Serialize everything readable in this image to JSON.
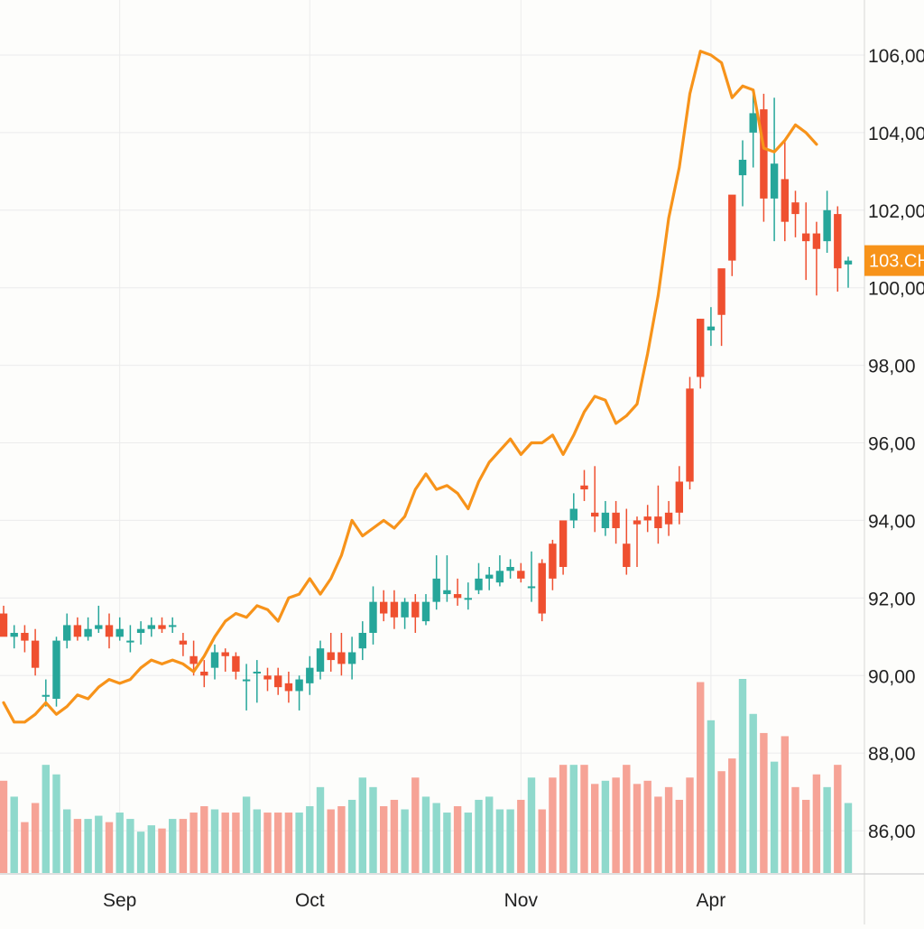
{
  "chart_data": {
    "type": "candlestick",
    "xlabel": "",
    "ylabel": "",
    "ylim": [
      84000,
      107000
    ],
    "y_ticks": [
      86000,
      88000,
      90000,
      92000,
      94000,
      96000,
      98000,
      100000,
      102000,
      104000,
      106000
    ],
    "y_tick_labels": [
      "86,00",
      "88,00",
      "90,00",
      "92,00",
      "94,00",
      "96,00",
      "98,00",
      "100,00",
      "102,00",
      "104,00",
      "106,00"
    ],
    "x_tick_labels": [
      {
        "label": "Sep",
        "index": 11
      },
      {
        "label": "Oct",
        "index": 29
      },
      {
        "label": "Nov",
        "index": 49
      },
      {
        "label": "Apr",
        "index": 67
      }
    ],
    "current_price_label": "103.CH",
    "current_price_value": 100700,
    "colors": {
      "up": "#26a69a",
      "down": "#ef5030",
      "up_volume": "#8fd9cc",
      "down_volume": "#f6a396",
      "overlay_line": "#f7931a",
      "price_tag": "#f7931a",
      "grid": "#ececec",
      "text": "#222222"
    },
    "grid": true,
    "candles": {
      "open": [
        91600,
        91000,
        91100,
        90900,
        89500,
        89400,
        90900,
        91300,
        91000,
        91200,
        91300,
        91000,
        90900,
        91100,
        91200,
        91300,
        91300,
        90900,
        90500,
        90100,
        90200,
        90600,
        90500,
        89900,
        90100,
        90000,
        90000,
        89800,
        89600,
        89800,
        90100,
        90600,
        90600,
        90300,
        90700,
        91100,
        91900,
        91900,
        91500,
        91900,
        91400,
        91900,
        92100,
        92100,
        92000,
        92200,
        92500,
        92400,
        92700,
        92700,
        92300,
        92900,
        93400,
        94000,
        94000,
        94900,
        94200,
        93800,
        94200,
        93400,
        94000,
        94100,
        94100,
        94200,
        95000,
        97400,
        99200,
        98900,
        100500,
        102400,
        102900,
        104000,
        104600,
        102300,
        102800,
        102200,
        101400,
        101400,
        101200,
        101900,
        100600
      ],
      "close": [
        91000,
        91100,
        90900,
        90200,
        89500,
        90900,
        91300,
        91000,
        91200,
        91300,
        91000,
        91200,
        90900,
        91200,
        91300,
        91200,
        91300,
        90800,
        90300,
        90000,
        90600,
        90500,
        90100,
        89900,
        90100,
        89900,
        89700,
        89600,
        89900,
        90200,
        90700,
        90400,
        90300,
        90600,
        91100,
        91900,
        91600,
        91500,
        91900,
        91500,
        91900,
        92500,
        92200,
        92000,
        92000,
        92500,
        92600,
        92700,
        92800,
        92500,
        92300,
        91600,
        92500,
        92800,
        94300,
        94800,
        94100,
        94200,
        93800,
        92800,
        93900,
        94000,
        93800,
        93900,
        94200,
        95000,
        97700,
        99000,
        99300,
        100700,
        103300,
        104500,
        102300,
        103200,
        101700,
        101900,
        101200,
        101000,
        102000,
        100500,
        100700
      ],
      "high": [
        91800,
        91300,
        91300,
        91200,
        89900,
        91000,
        91600,
        91500,
        91500,
        91800,
        91600,
        91500,
        91300,
        91400,
        91500,
        91500,
        91500,
        91100,
        90900,
        90400,
        90800,
        90700,
        90600,
        90300,
        90400,
        90200,
        90200,
        90100,
        90000,
        90500,
        90900,
        91100,
        91100,
        91000,
        91400,
        92300,
        92200,
        92200,
        92000,
        92100,
        92100,
        93100,
        93100,
        92500,
        92400,
        92900,
        92800,
        93100,
        93000,
        92900,
        93200,
        93000,
        93500,
        93900,
        94700,
        95300,
        95400,
        94500,
        94500,
        94300,
        94100,
        94400,
        94900,
        94500,
        95400,
        97700,
        99200,
        99500,
        99400,
        101000,
        103800,
        105000,
        105000,
        104900,
        103800,
        102500,
        102200,
        101700,
        102500,
        102100,
        100800
      ],
      "low": [
        91400,
        90700,
        90600,
        90000,
        89200,
        89200,
        90700,
        90900,
        90900,
        91100,
        90700,
        90900,
        90600,
        90800,
        91000,
        91100,
        91100,
        90500,
        90000,
        89700,
        89900,
        90100,
        89900,
        89100,
        89300,
        89600,
        89500,
        89300,
        89100,
        89500,
        89900,
        90100,
        90000,
        89900,
        90400,
        90800,
        91400,
        91200,
        91200,
        91100,
        91300,
        91700,
        91900,
        91800,
        91700,
        92100,
        92200,
        92300,
        92500,
        92400,
        91900,
        91400,
        92200,
        92600,
        93800,
        94500,
        93700,
        93600,
        93400,
        92600,
        92800,
        93700,
        93400,
        93600,
        93900,
        94800,
        97400,
        98500,
        98500,
        100300,
        102100,
        103100,
        101700,
        101200,
        101200,
        101300,
        100200,
        99800,
        100900,
        99900,
        100000
      ],
      "volume": [
        2900,
        2400,
        1600,
        2200,
        3400,
        3100,
        2000,
        1700,
        1700,
        1800,
        1600,
        1900,
        1700,
        1300,
        1500,
        1400,
        1700,
        1700,
        1900,
        2100,
        2000,
        1900,
        1900,
        2400,
        2000,
        1900,
        1900,
        1900,
        1900,
        2100,
        2700,
        2000,
        2100,
        2300,
        3000,
        2700,
        2100,
        2300,
        2000,
        3000,
        2400,
        2200,
        1900,
        2100,
        1900,
        2300,
        2400,
        2000,
        2000,
        2300,
        3000,
        2000,
        3000,
        3400,
        3400,
        3400,
        2800,
        2900,
        3000,
        3400,
        2800,
        2900,
        2400,
        2700,
        2300,
        3000,
        6000,
        4800,
        3200,
        3600,
        6100,
        5000,
        4400,
        3500,
        4300,
        2700,
        2300,
        3100,
        2700,
        3400,
        2200
      ]
    },
    "overlay_line": {
      "x": [
        0,
        1,
        2,
        3,
        4,
        5,
        6,
        7,
        8,
        9,
        10,
        11,
        12,
        13,
        14,
        15,
        16,
        17,
        18,
        19,
        20,
        21,
        22,
        23,
        24,
        25,
        26,
        27,
        28,
        29,
        30,
        31,
        32,
        33,
        34,
        35,
        36,
        37,
        38,
        39,
        40,
        41,
        42,
        43,
        44,
        45,
        46,
        47,
        48,
        49,
        50,
        51,
        52,
        53,
        54,
        55,
        56,
        57,
        58,
        59,
        60,
        61,
        62,
        63,
        64,
        65,
        66,
        67,
        68,
        69,
        70,
        71,
        72,
        73,
        74,
        75,
        76,
        77
      ],
      "y": [
        89300,
        88800,
        88800,
        89000,
        89300,
        89000,
        89200,
        89500,
        89400,
        89700,
        89900,
        89800,
        89900,
        90200,
        90400,
        90300,
        90400,
        90300,
        90100,
        90500,
        91000,
        91400,
        91600,
        91500,
        91800,
        91700,
        91400,
        92000,
        92100,
        92500,
        92100,
        92500,
        93100,
        94000,
        93600,
        93800,
        94000,
        93800,
        94100,
        94800,
        95200,
        94800,
        94900,
        94700,
        94300,
        95000,
        95500,
        95800,
        96100,
        95700,
        96000,
        96000,
        96200,
        95700,
        96200,
        96800,
        97200,
        97100,
        96500,
        96700,
        97000,
        98300,
        99800,
        101800,
        103100,
        105000,
        106100,
        106000,
        105800,
        104900,
        105200,
        105100,
        103600,
        103500,
        103800,
        104200,
        104000,
        103700
      ],
      "x_ticks_note": ""
    }
  }
}
